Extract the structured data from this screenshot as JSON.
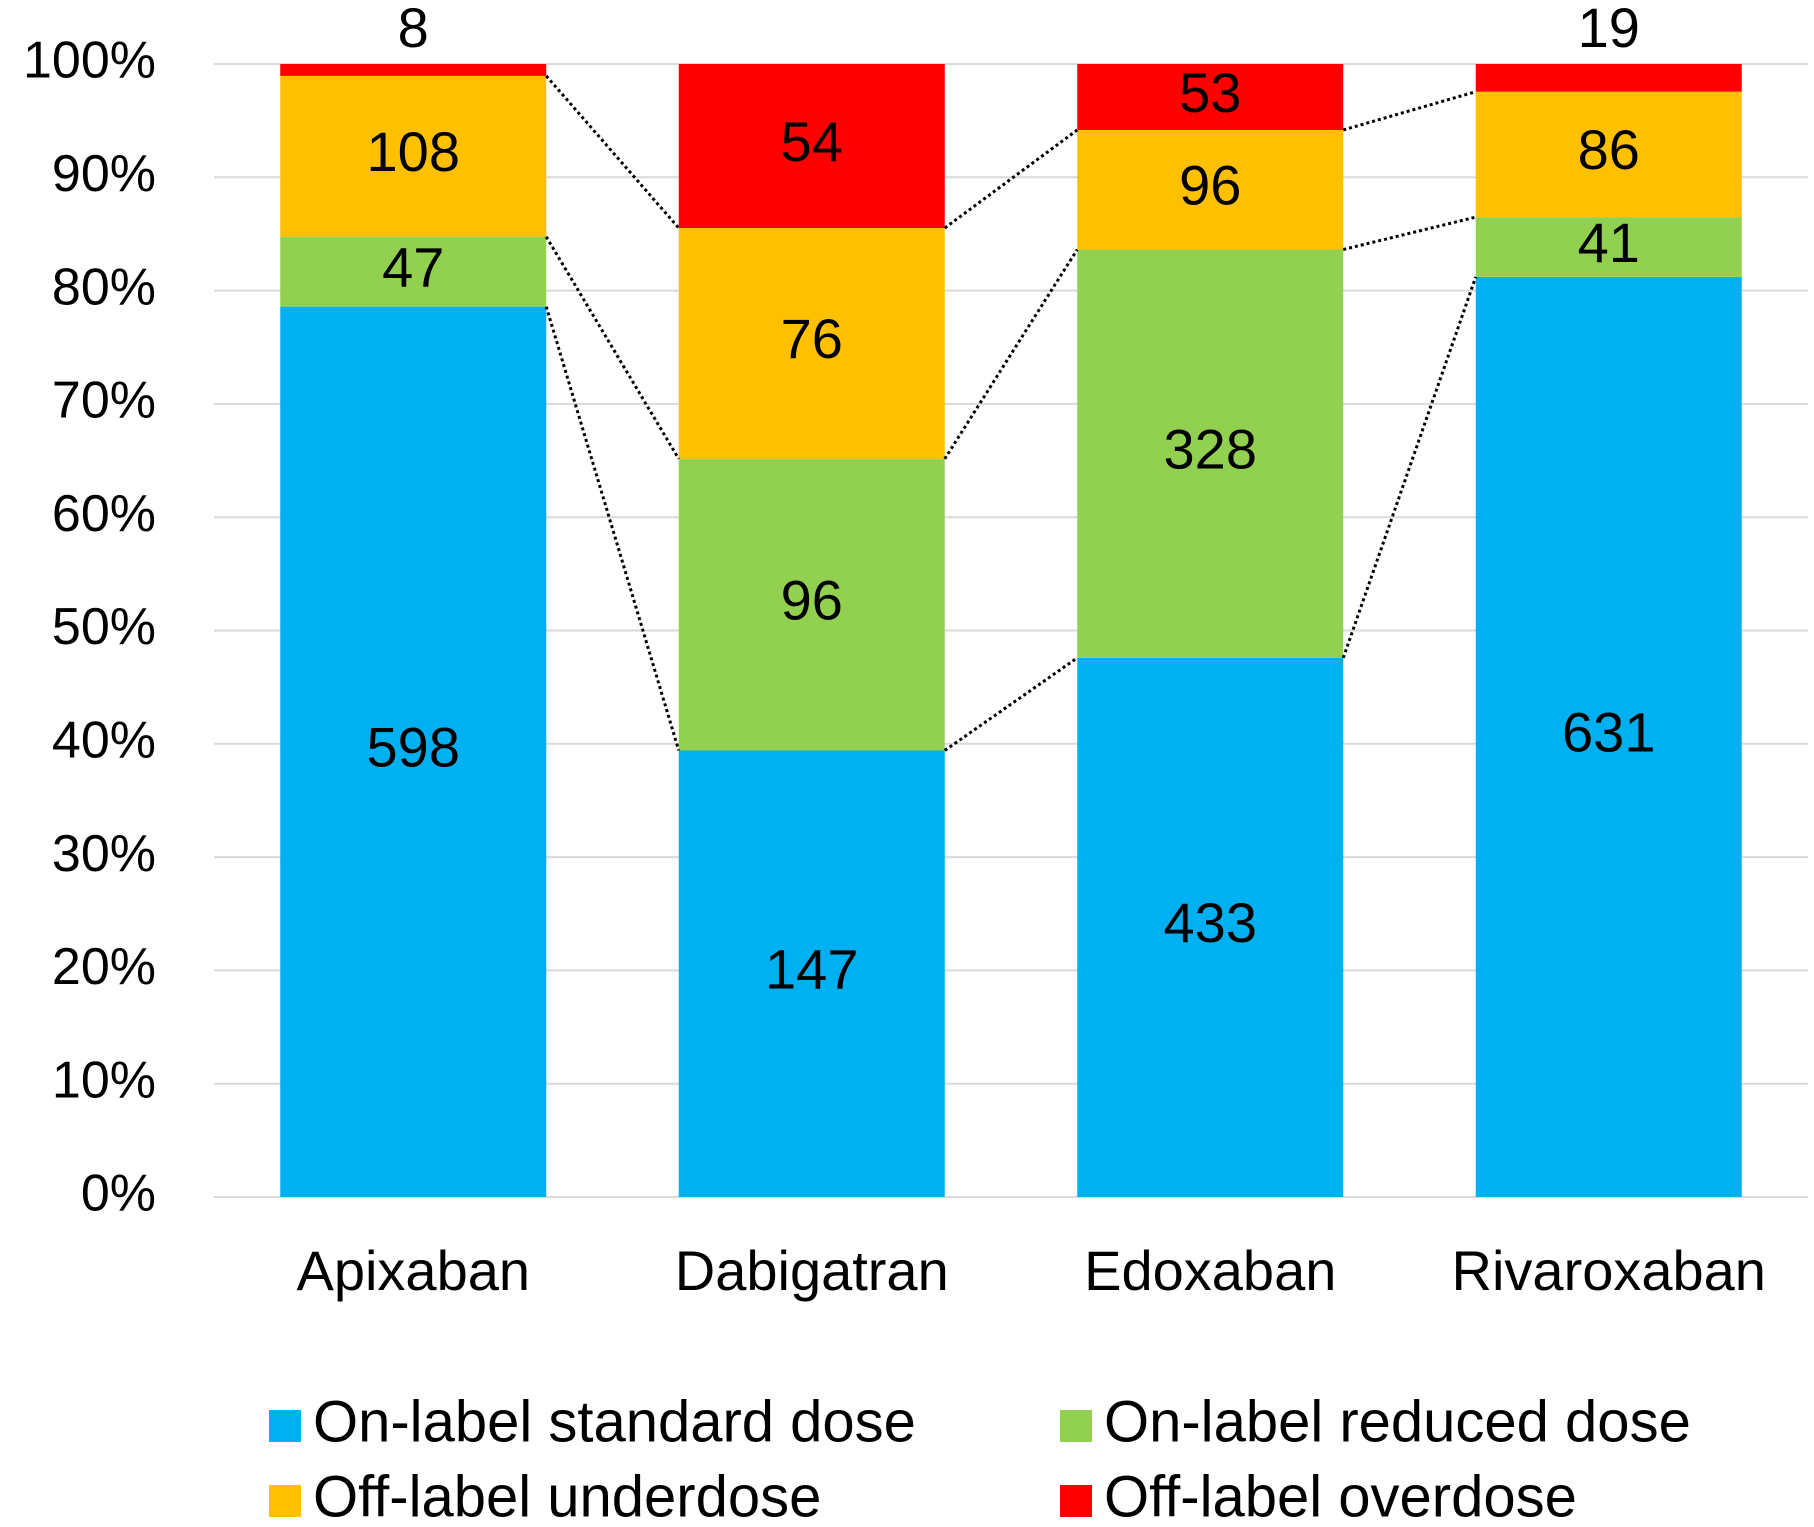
{
  "chart_data": {
    "type": "bar",
    "stacked": "percent",
    "categories": [
      "Apixaban",
      "Dabigatran",
      "Edoxaban",
      "Rivaroxaban"
    ],
    "series": [
      {
        "name": "On-label standard dose",
        "color": "#00b0f0",
        "values": [
          598,
          147,
          433,
          631
        ]
      },
      {
        "name": "On-label reduced dose",
        "color": "#92d050",
        "values": [
          47,
          96,
          328,
          41
        ]
      },
      {
        "name": "Off-label underdose",
        "color": "#ffc000",
        "values": [
          108,
          76,
          96,
          86
        ]
      },
      {
        "name": "Off-label overdose",
        "color": "#ff0000",
        "values": [
          8,
          54,
          53,
          19
        ]
      }
    ],
    "ylim": [
      0,
      100
    ],
    "yticks": [
      {
        "value": 0,
        "label": "0%"
      },
      {
        "value": 10,
        "label": "10%"
      },
      {
        "value": 20,
        "label": "20%"
      },
      {
        "value": 30,
        "label": "30%"
      },
      {
        "value": 40,
        "label": "40%"
      },
      {
        "value": 50,
        "label": "50%"
      },
      {
        "value": 60,
        "label": "60%"
      },
      {
        "value": 70,
        "label": "70%"
      },
      {
        "value": 80,
        "label": "80%"
      },
      {
        "value": 90,
        "label": "90%"
      },
      {
        "value": 100,
        "label": "100%"
      }
    ],
    "grid": true,
    "legend": "bottom",
    "series_lines": true
  }
}
